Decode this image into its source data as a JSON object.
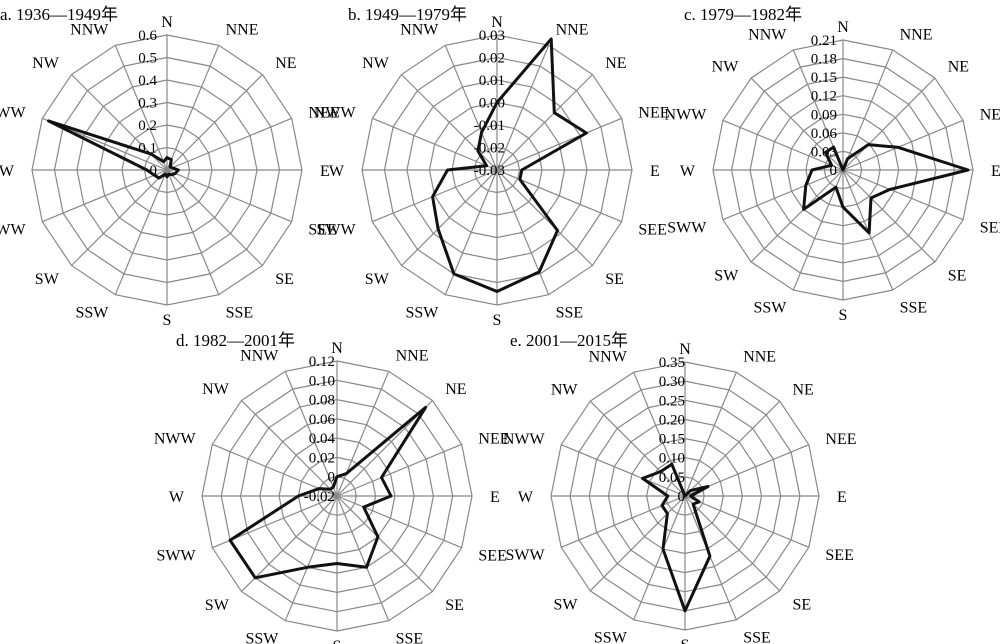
{
  "directions": [
    "N",
    "NNE",
    "NE",
    "NEE",
    "E",
    "SEE",
    "SE",
    "SSE",
    "S",
    "SSW",
    "SW",
    "SWW",
    "W",
    "NWW",
    "NW",
    "NNW"
  ],
  "chart_data": [
    {
      "type": "radar",
      "title": "a. 1936—1949年",
      "tick_labels": [
        "0",
        "0.1",
        "0.2",
        "0.3",
        "0.4",
        "0.5",
        "0.6"
      ],
      "rmin": 0,
      "rmax": 0.6,
      "categories": [
        "N",
        "NNE",
        "NE",
        "NEE",
        "E",
        "SEE",
        "SE",
        "SSE",
        "S",
        "SSW",
        "SW",
        "SWW",
        "W",
        "NWW",
        "NW",
        "NNW"
      ],
      "values": [
        0.055,
        0.05,
        0.02,
        0.025,
        0.05,
        0.04,
        0.03,
        0.02,
        0.03,
        0.02,
        0.05,
        0.06,
        0.09,
        0.57,
        0.1,
        0.04
      ]
    },
    {
      "type": "radar",
      "title": "b. 1949—1979年",
      "tick_labels": [
        "-0.03",
        "-0.02",
        "-0.01",
        "0.00",
        "0.01",
        "0.02",
        "0.03"
      ],
      "rmin": -0.03,
      "rmax": 0.03,
      "categories": [
        "N",
        "NNE",
        "NE",
        "NEE",
        "E",
        "SEE",
        "SE",
        "SSE",
        "S",
        "SSW",
        "SW",
        "SWW",
        "W",
        "NWW",
        "NW",
        "NNW"
      ],
      "values": [
        0.0,
        0.033,
        0.006,
        0.013,
        -0.019,
        -0.019,
        0.008,
        0.019,
        0.024,
        0.02,
        0.007,
        0.001,
        -0.008,
        -0.025,
        -0.018,
        -0.012
      ]
    },
    {
      "type": "radar",
      "title": "c. 1979—1982年",
      "tick_labels": [
        "0",
        "0.03",
        "0.06",
        "0.09",
        "0.12",
        "0.15",
        "0.18",
        "0.21"
      ],
      "rmin": 0,
      "rmax": 0.21,
      "categories": [
        "N",
        "NNE",
        "NE",
        "NEE",
        "E",
        "SEE",
        "SE",
        "SSE",
        "S",
        "SSW",
        "SW",
        "SWW",
        "W",
        "NWW",
        "NW",
        "NNW"
      ],
      "values": [
        0.0,
        0.02,
        0.058,
        0.096,
        0.202,
        0.082,
        0.064,
        0.11,
        0.06,
        0.03,
        0.09,
        0.065,
        0.05,
        0.02,
        0.04,
        0.04
      ]
    },
    {
      "type": "radar",
      "title": "d. 1982—2001年",
      "tick_labels": [
        "-0.02",
        "0",
        "0.02",
        "0.04",
        "0.06",
        "0.08",
        "0.10",
        "0.12"
      ],
      "rmin": -0.02,
      "rmax": 0.12,
      "categories": [
        "N",
        "NNE",
        "NE",
        "NEE",
        "E",
        "SEE",
        "SE",
        "SSE",
        "S",
        "SSW",
        "SW",
        "SWW",
        "W",
        "NWW",
        "NW",
        "NNW"
      ],
      "values": [
        0.0,
        0.005,
        0.11,
        0.03,
        0.036,
        0.01,
        0.04,
        0.06,
        0.05,
        0.06,
        0.1,
        0.1,
        0.02,
        0.0,
        -0.01,
        -0.01
      ]
    },
    {
      "type": "radar",
      "title": "e. 2001—2015年",
      "tick_labels": [
        "0",
        "0.05",
        "0.10",
        "0.15",
        "0.20",
        "0.25",
        "0.30",
        "0.35"
      ],
      "rmin": 0,
      "rmax": 0.35,
      "categories": [
        "N",
        "NNE",
        "NE",
        "NEE",
        "E",
        "SEE",
        "SE",
        "SSE",
        "S",
        "SSW",
        "SW",
        "SWW",
        "W",
        "NWW",
        "NW",
        "NNW"
      ],
      "values": [
        0.0,
        0.0,
        0.02,
        0.065,
        0.015,
        0.04,
        0.03,
        0.17,
        0.3,
        0.15,
        0.065,
        0.065,
        0.045,
        0.12,
        0.09,
        0.09
      ]
    }
  ]
}
